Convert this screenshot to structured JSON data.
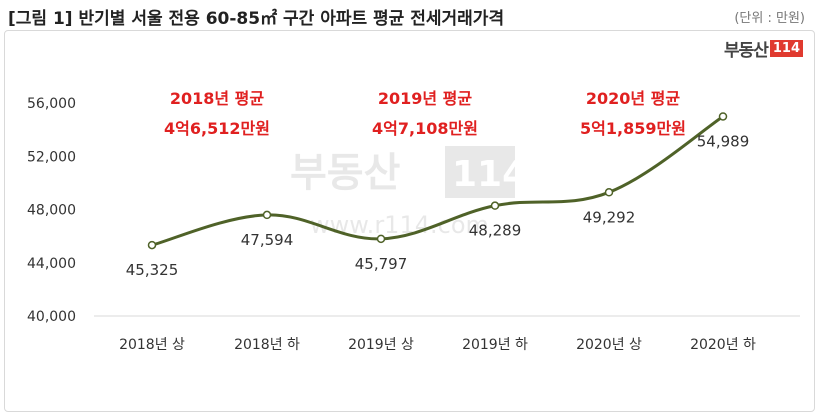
{
  "title": "[그림 1] 반기별 서울 전용 60-85㎡ 구간 아파트 평균 전세거래가격",
  "unit": "(단위 : 만원)",
  "logo": {
    "text": "부동산",
    "number": "114"
  },
  "watermark": {
    "text": "부동산",
    "number": "114",
    "url": "www.r114.com"
  },
  "colors": {
    "line": "#4f6228",
    "annotation": "#e02020",
    "grid": "#d9d9d9"
  },
  "chart_data": {
    "type": "line",
    "categories": [
      "2018년 상",
      "2018년 하",
      "2019년 상",
      "2019년 하",
      "2020년 상",
      "2020년 하"
    ],
    "values": [
      45325,
      47594,
      45797,
      48289,
      49292,
      54989
    ],
    "value_labels": [
      "45,325",
      "47,594",
      "45,797",
      "48,289",
      "49,292",
      "54,989"
    ],
    "ylim": [
      40000,
      56000
    ],
    "yticks": [
      40000,
      44000,
      48000,
      52000,
      56000
    ],
    "ytick_labels": [
      "40,000",
      "44,000",
      "48,000",
      "52,000",
      "56,000"
    ],
    "grid": false,
    "annotations": [
      {
        "line1": "2018년 평균",
        "line2": "4억6,512만원"
      },
      {
        "line1": "2019년 평균",
        "line2": "4억7,108만원"
      },
      {
        "line1": "2020년 평균",
        "line2": "5억1,859만원"
      }
    ]
  }
}
